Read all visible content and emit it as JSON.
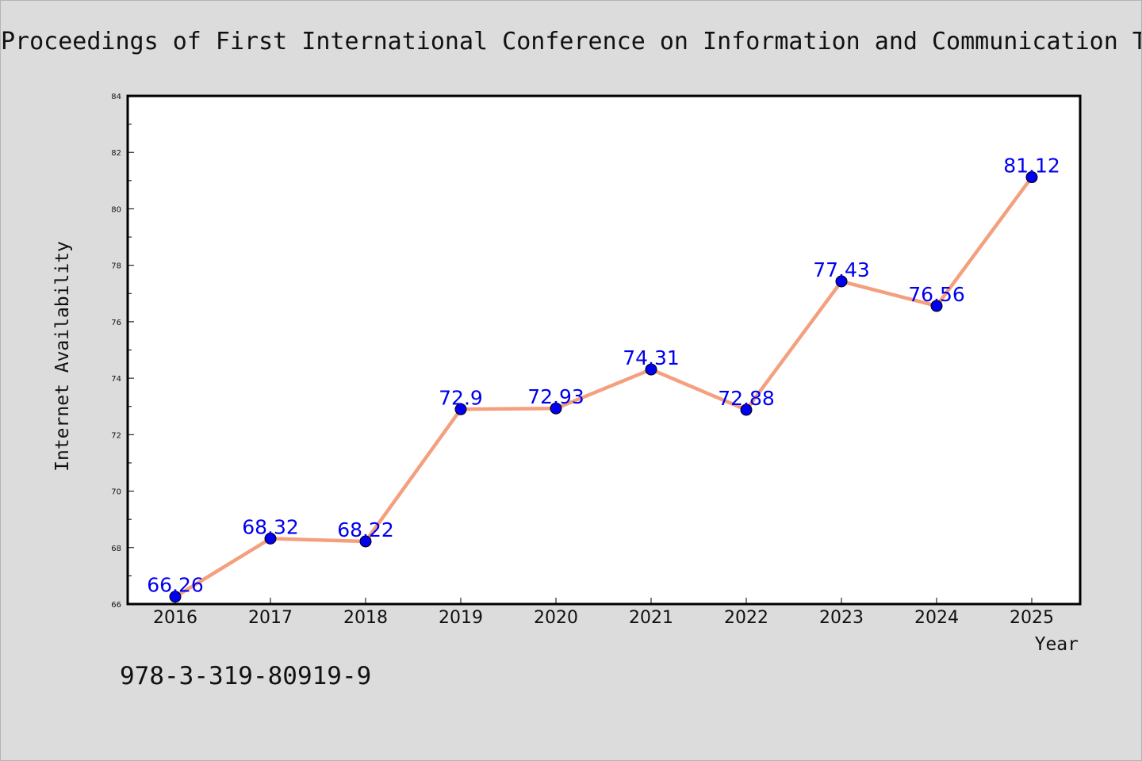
{
  "header": {
    "title": "Proceedings of First International Conference on Information and Communication T"
  },
  "footer": {
    "isbn": "978-3-319-80919-9"
  },
  "chart_data": {
    "type": "line",
    "title": "Proceedings of First International Conference on Information and Communication T",
    "xlabel": "Year",
    "ylabel": "Internet Availability",
    "categories": [
      "2016",
      "2017",
      "2018",
      "2019",
      "2020",
      "2021",
      "2022",
      "2023",
      "2024",
      "2025"
    ],
    "series": [
      {
        "values": [
          66.26,
          68.32,
          68.22,
          72.9,
          72.93,
          74.31,
          72.88,
          77.43,
          76.56,
          81.12
        ],
        "data_labels": [
          "66.26",
          "68.32",
          "68.22",
          "72.9",
          "72.93",
          "74.31",
          "72.88",
          "77.43",
          "76.56",
          "81.12"
        ],
        "line_color": "#f4a07f",
        "marker_color": "#0000ee",
        "label_color": "#0000ee"
      }
    ],
    "ylim": [
      66,
      84
    ],
    "yticks": [
      "66",
      "68",
      "70",
      "72",
      "74",
      "76",
      "78",
      "80",
      "82",
      "84"
    ],
    "grid": false,
    "legend": "none",
    "plot_background": "#ffffff",
    "page_background": "#dcdcdc"
  }
}
